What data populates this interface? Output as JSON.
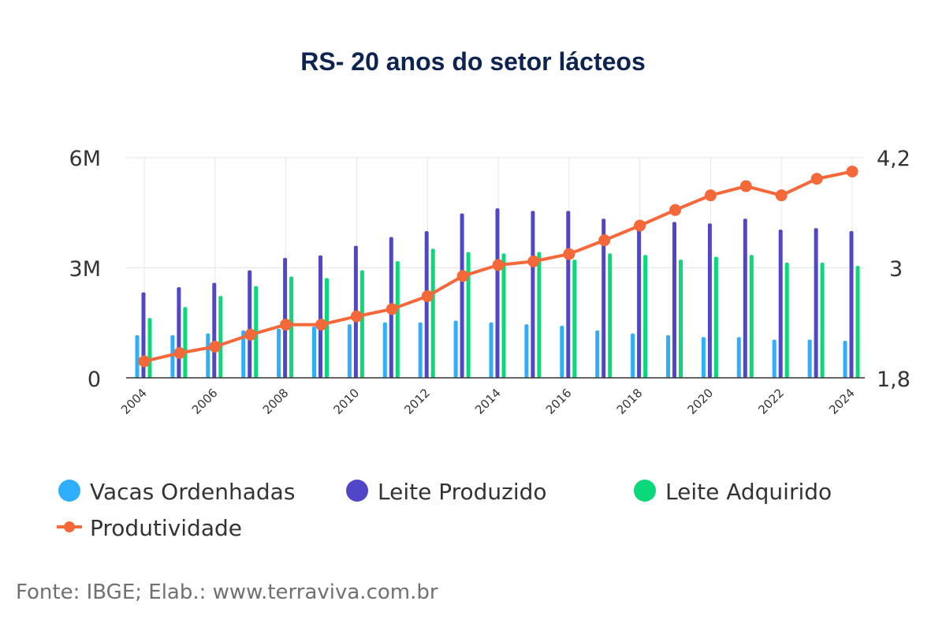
{
  "chart_data": {
    "type": "bar",
    "title": "RS- 20 anos do setor lácteos",
    "source": "Fonte: IBGE; Elab.: www.terraviva.com.br",
    "years": [
      2004,
      2005,
      2006,
      2007,
      2008,
      2009,
      2010,
      2011,
      2012,
      2013,
      2014,
      2015,
      2016,
      2017,
      2018,
      2019,
      2020,
      2021,
      2022,
      2023,
      2024
    ],
    "x_tick_labels": [
      "2004",
      "2006",
      "2008",
      "2010",
      "2012",
      "2014",
      "2016",
      "2018",
      "2020",
      "2022",
      "2024"
    ],
    "y_left": {
      "min": 0,
      "max": 6000000,
      "ticks": [
        0,
        3000000,
        6000000
      ],
      "tick_labels": [
        "0",
        "3M",
        "6M"
      ]
    },
    "y_right": {
      "min": 1.8,
      "max": 4.2,
      "ticks": [
        1.8,
        3.0,
        4.2
      ],
      "tick_labels": [
        "1,8",
        "3",
        "4,2"
      ]
    },
    "grid": "vertical",
    "legend_position": "bottom",
    "series": [
      {
        "name": "Vacas Ordenhadas",
        "type": "bar",
        "axis": "left",
        "color": "#2eaefc",
        "values": [
          1160000,
          1160000,
          1210000,
          1290000,
          1340000,
          1400000,
          1460000,
          1510000,
          1510000,
          1560000,
          1510000,
          1460000,
          1420000,
          1290000,
          1210000,
          1160000,
          1110000,
          1110000,
          1040000,
          1040000,
          1010000
        ]
      },
      {
        "name": "Leite Produzido",
        "type": "bar",
        "axis": "left",
        "color": "#5246c8",
        "values": [
          2330000,
          2470000,
          2590000,
          2930000,
          3270000,
          3340000,
          3600000,
          3840000,
          4000000,
          4480000,
          4620000,
          4550000,
          4550000,
          4340000,
          4080000,
          4250000,
          4210000,
          4340000,
          4040000,
          4080000,
          4000000
        ]
      },
      {
        "name": "Leite Adquirido",
        "type": "bar",
        "axis": "left",
        "color": "#0bd87a",
        "values": [
          1630000,
          1930000,
          2230000,
          2500000,
          2760000,
          2720000,
          2930000,
          3180000,
          3520000,
          3430000,
          3390000,
          3430000,
          3220000,
          3390000,
          3350000,
          3220000,
          3300000,
          3350000,
          3140000,
          3140000,
          3050000
        ]
      },
      {
        "name": "Produtividade",
        "type": "line",
        "axis": "right",
        "color": "#f4683a",
        "values": [
          1.98,
          2.07,
          2.14,
          2.27,
          2.38,
          2.38,
          2.47,
          2.55,
          2.69,
          2.91,
          3.03,
          3.07,
          3.15,
          3.3,
          3.46,
          3.63,
          3.79,
          3.89,
          3.79,
          3.97,
          4.05
        ]
      }
    ]
  }
}
